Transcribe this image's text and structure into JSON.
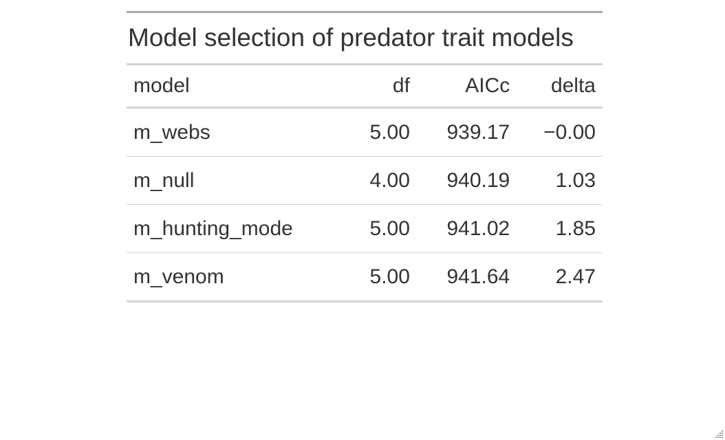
{
  "table": {
    "title": "Model selection of predator trait models",
    "columns": [
      "model",
      "df",
      "AICc",
      "delta"
    ],
    "rows": [
      [
        "m_webs",
        "5.00",
        "939.17",
        "−0.00"
      ],
      [
        "m_null",
        "4.00",
        "940.19",
        "1.03"
      ],
      [
        "m_hunting_mode",
        "5.00",
        "941.02",
        "1.85"
      ],
      [
        "m_venom",
        "5.00",
        "941.64",
        "2.47"
      ]
    ]
  },
  "icons": {
    "resize": "resize-grip-icon"
  }
}
